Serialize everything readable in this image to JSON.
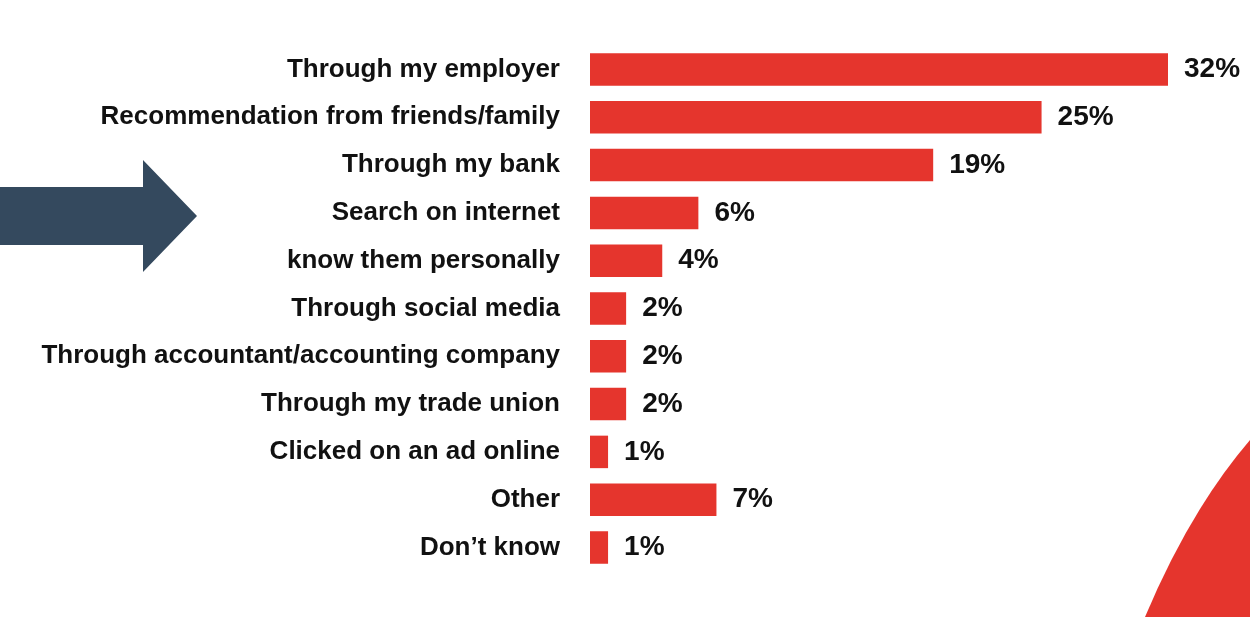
{
  "chart_data": {
    "type": "bar",
    "orientation": "horizontal",
    "categories": [
      "Through my employer",
      "Recommendation from friends/family",
      "Through my bank",
      "Search on internet",
      "know them personally",
      "Through social media",
      "Through accountant/accounting company",
      "Through my trade union",
      "Clicked on an ad online",
      "Other",
      "Don’t know"
    ],
    "values": [
      32,
      25,
      19,
      6,
      4,
      2,
      2,
      2,
      1,
      7,
      1
    ],
    "value_labels": [
      "32%",
      "25%",
      "19%",
      "6%",
      "4%",
      "2%",
      "2%",
      "2%",
      "1%",
      "7%",
      "1%"
    ],
    "color": "#e5352d",
    "legend": false
  }
}
